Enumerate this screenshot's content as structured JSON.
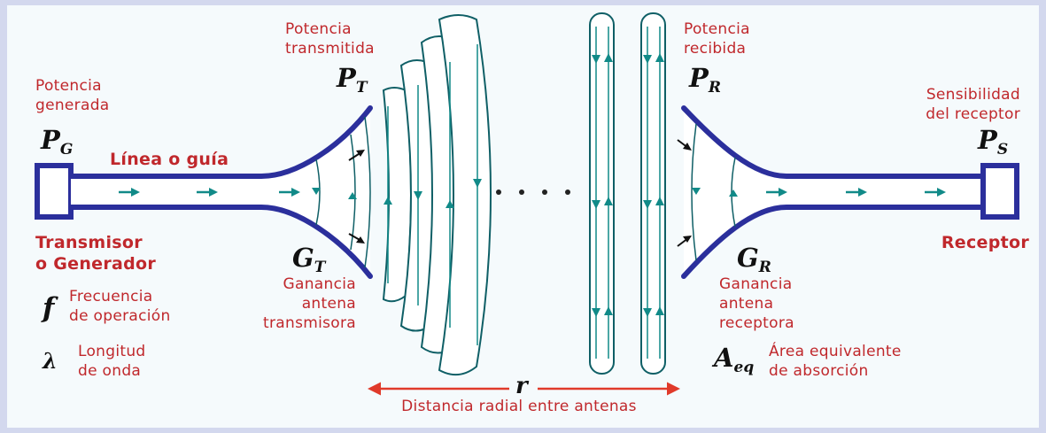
{
  "transmitter": {
    "generated_power_label": "Potencia\ngenerada",
    "generated_power_symbol": "P",
    "generated_power_subscript": "G",
    "line_label": "Línea o guía",
    "device_label": "Transmisor\no Generador",
    "frequency_symbol": "f",
    "frequency_label": "Frecuencia\nde operación",
    "wavelength_symbol": "λ",
    "wavelength_label": "Longitud\nde onda"
  },
  "tx_antenna": {
    "power_label": "Potencia\ntransmitida",
    "power_symbol": "P",
    "power_subscript": "T",
    "gain_symbol": "G",
    "gain_subscript": "T",
    "gain_label": "Ganancia\nantena\ntransmisora"
  },
  "propagation": {
    "distance_symbol": "r",
    "distance_label": "Distancia radial entre antenas"
  },
  "rx_antenna": {
    "power_label": "Potencia\nrecibida",
    "power_symbol": "P",
    "power_subscript": "R",
    "gain_symbol": "G",
    "gain_subscript": "R",
    "gain_label": "Ganancia\nantena\nreceptora",
    "area_symbol": "A",
    "area_subscript": "eq",
    "area_label": "Área equivalente\nde absorción"
  },
  "receiver": {
    "sensitivity_label": "Sensibilidad\ndel receptor",
    "sensitivity_symbol": "P",
    "sensitivity_subscript": "S",
    "device_label": "Receptor"
  },
  "colors": {
    "guide": "#2b2f9c",
    "arrow_teal": "#118a88",
    "label_red": "#c0282c",
    "distance_arrow": "#e03a2a"
  }
}
